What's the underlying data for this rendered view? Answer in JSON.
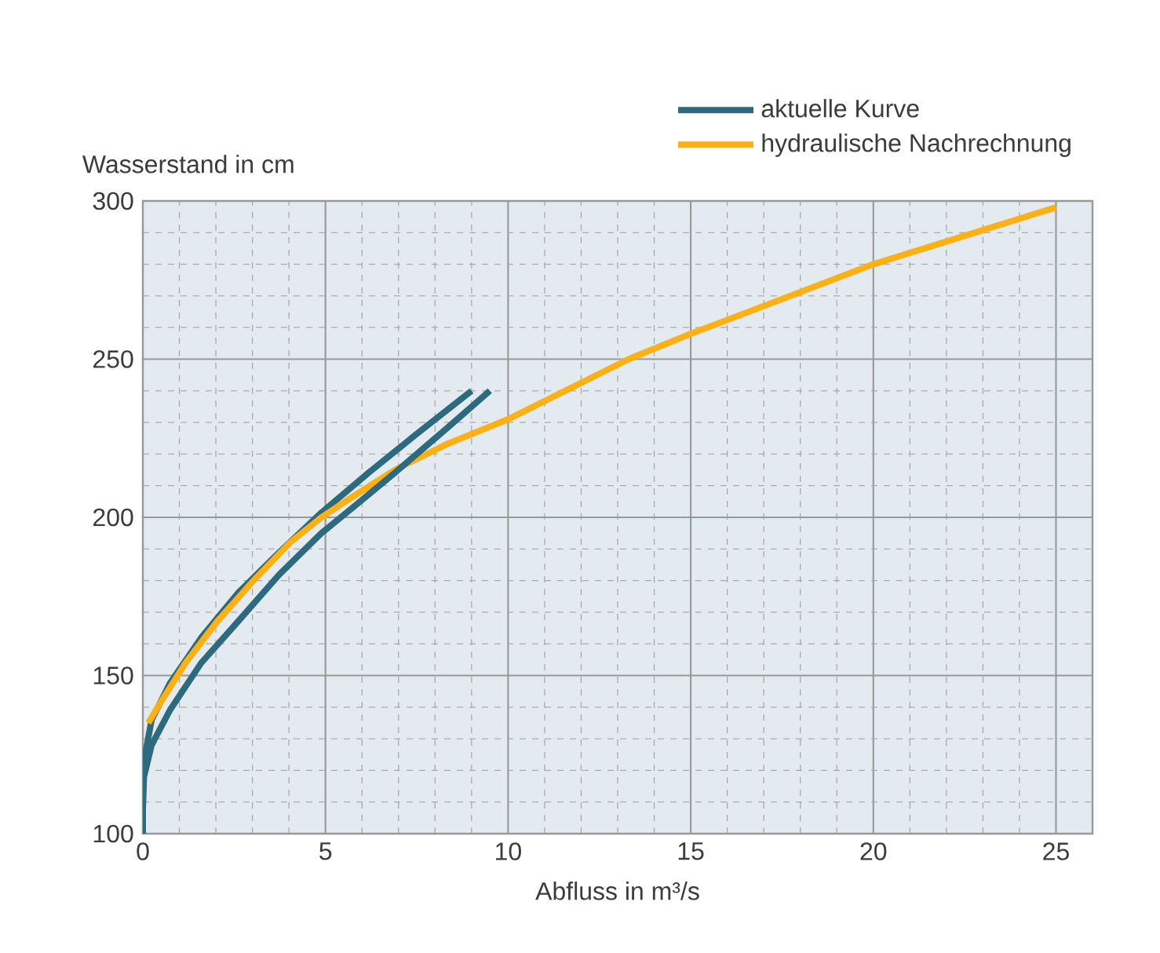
{
  "chart_data": {
    "type": "line",
    "xlabel": "Abfluss in m³/s",
    "ylabel": "Wasserstand in cm",
    "xlim": [
      0,
      26
    ],
    "ylim": [
      100,
      300
    ],
    "xticks": [
      0,
      5,
      10,
      15,
      20,
      25
    ],
    "yticks": [
      100,
      150,
      200,
      250,
      300
    ],
    "grid": true,
    "legend": "top right",
    "series": [
      {
        "name": "aktuelle Kurve",
        "color": "#2e6a7e",
        "x": [
          0,
          0,
          0.03,
          0.24,
          0.74,
          1.6,
          2.6,
          3.74,
          4.89,
          6.17,
          7.46,
          9
        ],
        "values": [
          100,
          110,
          123,
          136,
          147.5,
          162,
          176,
          189,
          201.5,
          214,
          226,
          240
        ]
      },
      {
        "name": "hydraulische Nachrechnung",
        "color": "#fbb116",
        "x": [
          0.15,
          0.46,
          1.17,
          2.03,
          3.03,
          4.03,
          4.89,
          5.74,
          6.9,
          8.3,
          10,
          13.3,
          15,
          20,
          25
        ],
        "values": [
          135,
          141,
          154,
          167,
          180,
          192,
          200,
          206.5,
          215,
          223,
          231,
          250,
          258,
          280,
          298
        ]
      },
      {
        "color": "#2e6a7e",
        "x": [
          0,
          0,
          0.03,
          0.24,
          0.74,
          1.6,
          2.6,
          3.74,
          4.89,
          5.74,
          6.89,
          8.31,
          9.5
        ],
        "values": [
          100,
          108,
          118,
          128,
          139,
          154,
          167,
          182,
          195,
          203,
          214,
          228,
          240
        ]
      }
    ]
  }
}
